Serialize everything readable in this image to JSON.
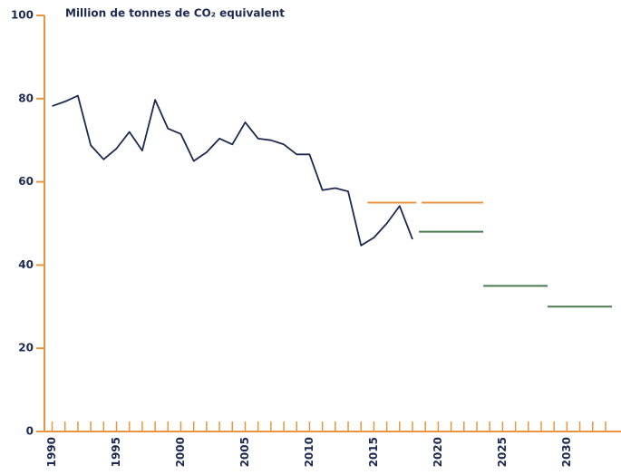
{
  "chart_data": {
    "type": "line",
    "title": "Million de tonnes de CO₂ equivalent",
    "x": [
      1990,
      1991,
      1992,
      1993,
      1994,
      1995,
      1996,
      1997,
      1998,
      1999,
      2000,
      2001,
      2002,
      2003,
      2004,
      2005,
      2006,
      2007,
      2008,
      2009,
      2010,
      2011,
      2012,
      2013,
      2014,
      2015,
      2016,
      2017,
      2018
    ],
    "series": [
      {
        "color": "#1d2951",
        "values": [
          78.2,
          79.3,
          80.7,
          68.8,
          65.4,
          68,
          72,
          67.5,
          79.7,
          72.8,
          71.5,
          65,
          67.1,
          70.4,
          69,
          74.3,
          70.4,
          70,
          69,
          66.6,
          66.6,
          58,
          58.5,
          57.7,
          44.7,
          46.6,
          50,
          54.2,
          46.2
        ]
      }
    ],
    "targets": [
      {
        "color": "#e8953f",
        "value": 55,
        "x": [
          2014.5,
          2018.3
        ]
      },
      {
        "color": "#e8953f",
        "value": 55,
        "x": [
          2018.7,
          2023.5
        ]
      },
      {
        "color": "#4a7a50",
        "value": 48,
        "x": [
          2018.5,
          2023.5
        ]
      },
      {
        "color": "#4a7a50",
        "value": 35,
        "x": [
          2023.5,
          2028.5
        ]
      },
      {
        "color": "#4a7a50",
        "value": 30,
        "x": [
          2028.5,
          2033.5
        ]
      }
    ],
    "xlim": [
      1989.4,
      2034.2
    ],
    "ylim": [
      0,
      100
    ],
    "xticks": [
      1990,
      1995,
      2000,
      2005,
      2010,
      2015,
      2020,
      2025,
      2030
    ],
    "xminor_ticks": [
      1990,
      1991,
      1992,
      1993,
      1994,
      1995,
      1996,
      1997,
      1998,
      1999,
      2000,
      2001,
      2002,
      2003,
      2004,
      2005,
      2006,
      2007,
      2008,
      2009,
      2010,
      2011,
      2012,
      2013,
      2014,
      2015,
      2016,
      2017,
      2018,
      2019,
      2020,
      2021,
      2022,
      2023,
      2024,
      2025,
      2026,
      2027,
      2028,
      2029,
      2030,
      2031,
      2032,
      2033
    ],
    "yticks": [
      0,
      20,
      40,
      60,
      80,
      100
    ],
    "axis_color": "#e8953f"
  }
}
